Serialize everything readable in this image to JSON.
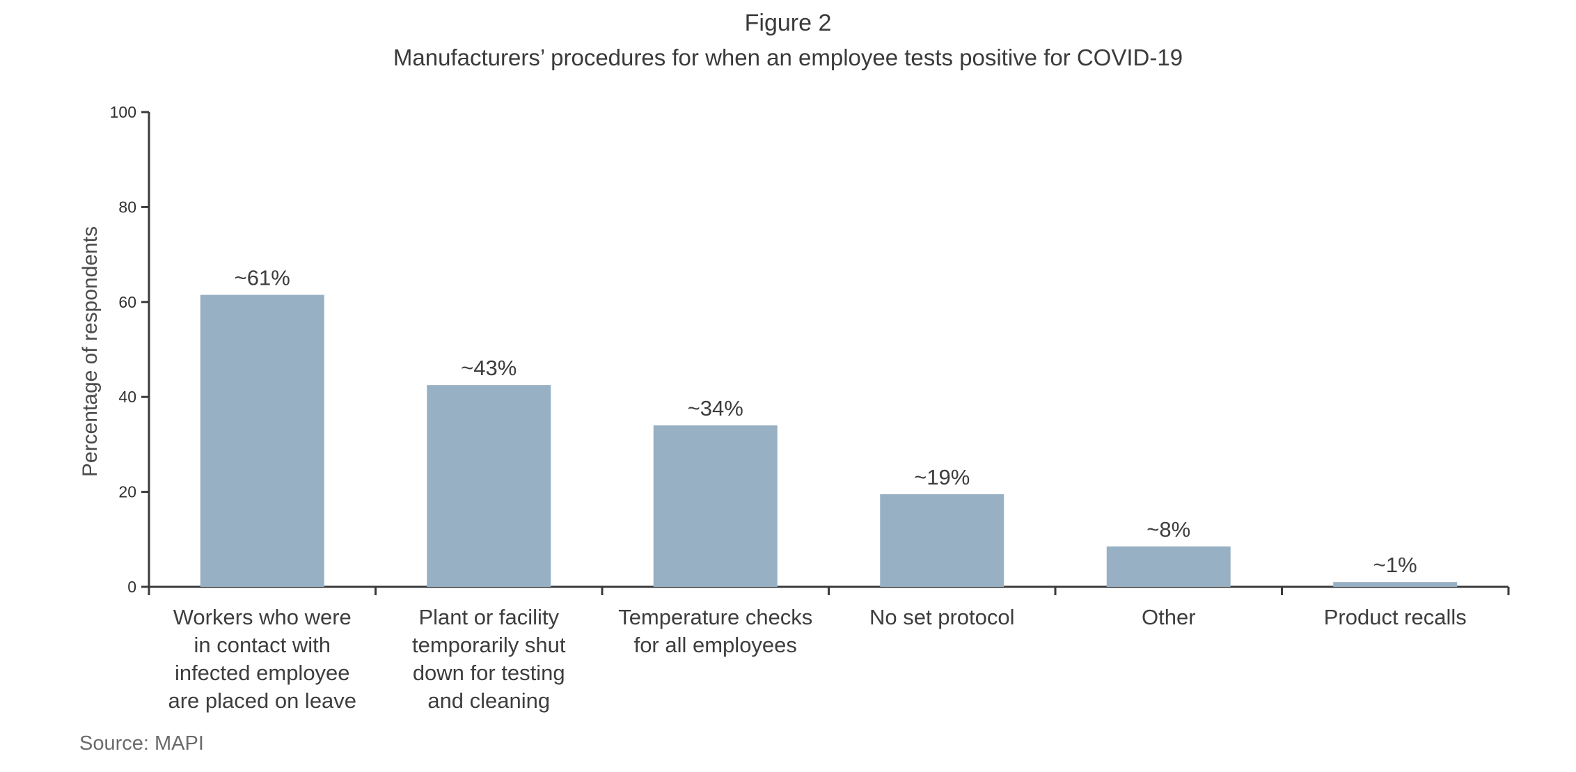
{
  "figure_label": "Figure 2",
  "source": "Source: MAPI",
  "colors": {
    "bar": "#98b0c3",
    "axis": "#3a3a3a",
    "text": "#3d3d3d",
    "source_text": "#6b6b6b"
  },
  "chart_data": {
    "type": "bar",
    "title": "Manufacturers’ procedures for when an employee tests positive for COVID-19",
    "xlabel": "",
    "ylabel": "Percentage of respondents",
    "ylim": [
      0,
      100
    ],
    "yticks": [
      0,
      20,
      40,
      60,
      80,
      100
    ],
    "grid": false,
    "categories": [
      "Workers who were\nin contact with\ninfected employee\nare placed on leave",
      "Plant or facility\ntemporarily shut\ndown for testing\nand cleaning",
      "Temperature checks\nfor all employees",
      "No set protocol",
      "Other",
      "Product recalls"
    ],
    "values": [
      61.5,
      42.5,
      34,
      19.5,
      8.5,
      1
    ],
    "data_labels": [
      "~61%",
      "~43%",
      "~34%",
      "~19%",
      "~8%",
      "~1%"
    ]
  }
}
